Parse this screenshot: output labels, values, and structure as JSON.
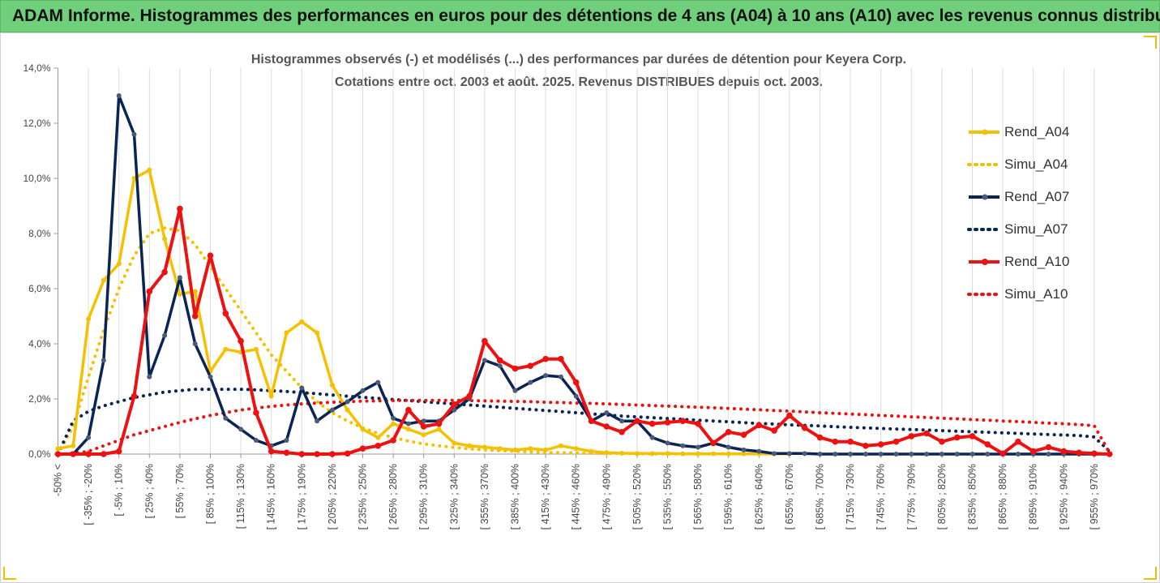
{
  "header": {
    "title": "ADAM Informe. Histogrammes des performances en euros pour des détentions de 4 ans (A04) à 10 ans (A10) avec les revenus connus distribués"
  },
  "chart_data": {
    "type": "line",
    "title": "Histogrammes observés (-)  et modélisés (...) des performances par durées de détention pour Keyera Corp.",
    "subtitle": "Cotations entre oct. 2003 et août. 2025.  Revenus DISTRIBUES depuis oct. 2003.",
    "ylim": [
      0,
      14
    ],
    "yticks": [
      "0,0%",
      "2,0%",
      "4,0%",
      "6,0%",
      "8,0%",
      "10,0%",
      "12,0%",
      "14,0%"
    ],
    "xtick_labels": [
      "-50% <",
      "[ -35% ; -20%",
      "[ -5% ; 10%",
      "[ 25% ; 40%",
      "[ 55% ; 70%",
      "[ 85% ; 100%",
      "[ 115% ; 130%",
      "[ 145% ; 160%",
      "[ 175% ; 190%",
      "[ 205% ; 220%",
      "[ 235% ; 250%",
      "[ 265% ; 280%",
      "[ 295% ; 310%",
      "[ 325% ; 340%",
      "[ 355% ; 370%",
      "[ 385% ; 400%",
      "[ 415% ; 430%",
      "[ 445% ; 460%",
      "[ 475% ; 490%",
      "[ 505% ; 520%",
      "[ 535% ; 550%",
      "[ 565% ; 580%",
      "[ 595% ; 610%",
      "[ 625% ; 640%",
      "[ 655% ; 670%",
      "[ 685% ; 700%",
      "[ 715% ; 730%",
      "[ 745% ; 760%",
      "[ 775% ; 790%",
      "[ 805% ; 820%",
      "[ 835% ; 850%",
      "[ 865% ; 880%",
      "[ 895% ; 910%",
      "[ 925% ; 940%",
      "[ 955% ; 970%"
    ],
    "n_bins": 70,
    "series": [
      {
        "name": "Rend_A04",
        "style": "solid",
        "color": "#f5c000",
        "values": [
          0.2,
          0.3,
          4.9,
          6.3,
          6.9,
          10.0,
          10.3,
          7.8,
          5.8,
          5.9,
          3.0,
          3.8,
          3.7,
          3.8,
          2.1,
          4.4,
          4.8,
          4.4,
          2.5,
          1.6,
          0.9,
          0.6,
          1.1,
          0.9,
          0.7,
          0.9,
          0.4,
          0.3,
          0.25,
          0.2,
          0.15,
          0.2,
          0.15,
          0.3,
          0.2,
          0.1,
          0.05,
          0.03,
          0.02,
          0.02,
          0.02,
          0.01,
          0.01,
          0.01,
          0.01,
          0.01,
          0.01,
          0.01,
          0.01,
          null,
          null,
          null,
          null,
          null,
          null,
          null,
          null,
          null,
          null,
          null,
          null,
          null,
          null,
          null,
          null,
          null,
          null,
          null,
          null,
          null
        ]
      },
      {
        "name": "Simu_A04",
        "style": "dotted",
        "color": "#f5c000",
        "values": [
          0.0,
          1.0,
          2.8,
          4.5,
          6.0,
          7.2,
          8.0,
          8.2,
          8.1,
          7.6,
          6.8,
          6.0,
          5.2,
          4.4,
          3.6,
          3.0,
          2.4,
          1.9,
          1.5,
          1.2,
          0.95,
          0.75,
          0.6,
          0.47,
          0.37,
          0.3,
          0.24,
          0.19,
          0.15,
          0.12,
          0.1,
          0.08,
          0.06,
          0.05,
          0.04,
          0.03,
          0.025,
          0.02,
          0.015,
          0.01,
          0.01,
          0.01,
          0.01,
          0.005,
          0.005,
          0.005,
          0.005,
          0.005,
          0.005,
          null,
          null,
          null,
          null,
          null,
          null,
          null,
          null,
          null,
          null,
          null,
          null,
          null,
          null,
          null,
          null,
          null,
          null,
          null,
          null,
          null
        ]
      },
      {
        "name": "Rend_A07",
        "style": "solid",
        "color": "#0a2456",
        "values": [
          0.0,
          0.0,
          0.6,
          3.4,
          13.0,
          11.6,
          2.8,
          4.3,
          6.4,
          4.0,
          2.8,
          1.3,
          0.9,
          0.5,
          0.3,
          0.5,
          2.4,
          1.2,
          1.6,
          1.9,
          2.3,
          2.6,
          1.3,
          1.1,
          1.2,
          1.2,
          1.6,
          2.0,
          3.4,
          3.2,
          2.3,
          2.6,
          2.85,
          2.8,
          2.1,
          1.2,
          1.5,
          1.2,
          1.2,
          0.6,
          0.4,
          0.3,
          0.25,
          0.4,
          0.25,
          0.15,
          0.1,
          0.02,
          0.02,
          0.02,
          0.0,
          0.0,
          0.0,
          0.0,
          0.0,
          0.0,
          0.0,
          0.0,
          0.0,
          0.0,
          0.0,
          0.0,
          0.0,
          0.0,
          0.0,
          0.0,
          0.0,
          0.0,
          0.0,
          0.0
        ]
      },
      {
        "name": "Simu_A07",
        "style": "dotted",
        "color": "#0a2456",
        "values": [
          0.0,
          1.2,
          1.55,
          1.75,
          1.9,
          2.05,
          2.15,
          2.25,
          2.3,
          2.35,
          2.35,
          2.35,
          2.35,
          2.33,
          2.3,
          2.27,
          2.23,
          2.19,
          2.14,
          2.1,
          2.06,
          2.02,
          1.98,
          1.94,
          1.9,
          1.86,
          1.82,
          1.78,
          1.74,
          1.7,
          1.66,
          1.62,
          1.58,
          1.54,
          1.5,
          1.46,
          1.42,
          1.38,
          1.35,
          1.32,
          1.29,
          1.26,
          1.23,
          1.2,
          1.17,
          1.14,
          1.11,
          1.09,
          1.06,
          1.04,
          1.02,
          0.99,
          0.97,
          0.95,
          0.93,
          0.91,
          0.89,
          0.87,
          0.85,
          0.83,
          0.81,
          0.79,
          0.77,
          0.75,
          0.73,
          0.71,
          0.69,
          0.67,
          0.62,
          0.1
        ]
      },
      {
        "name": "Rend_A10",
        "style": "solid",
        "color": "#ee1111",
        "values": [
          0.0,
          0.0,
          0.0,
          0.0,
          0.1,
          2.1,
          5.9,
          6.6,
          8.9,
          5.0,
          7.2,
          5.1,
          4.1,
          1.5,
          0.1,
          0.05,
          0.0,
          0.0,
          0.0,
          0.02,
          0.2,
          0.3,
          0.5,
          1.6,
          1.0,
          1.1,
          1.8,
          2.1,
          4.1,
          3.4,
          3.1,
          3.2,
          3.45,
          3.45,
          2.6,
          1.2,
          1.0,
          0.8,
          1.2,
          1.1,
          1.15,
          1.2,
          1.1,
          0.4,
          0.8,
          0.7,
          1.05,
          0.85,
          1.4,
          0.95,
          0.6,
          0.45,
          0.45,
          0.3,
          0.35,
          0.45,
          0.65,
          0.75,
          0.45,
          0.6,
          0.65,
          0.35,
          0.02,
          0.45,
          0.1,
          0.25,
          0.1,
          0.05,
          0.02,
          0.0
        ]
      },
      {
        "name": "Simu_A10",
        "style": "dotted",
        "color": "#ee1111",
        "values": [
          0.0,
          0.02,
          0.1,
          0.3,
          0.5,
          0.7,
          0.85,
          1.0,
          1.15,
          1.28,
          1.4,
          1.5,
          1.6,
          1.67,
          1.73,
          1.78,
          1.82,
          1.85,
          1.88,
          1.9,
          1.92,
          1.93,
          1.94,
          1.95,
          1.95,
          1.95,
          1.95,
          1.94,
          1.93,
          1.92,
          1.91,
          1.9,
          1.88,
          1.87,
          1.85,
          1.84,
          1.82,
          1.8,
          1.78,
          1.76,
          1.74,
          1.72,
          1.7,
          1.68,
          1.66,
          1.63,
          1.61,
          1.58,
          1.56,
          1.53,
          1.5,
          1.48,
          1.45,
          1.43,
          1.4,
          1.38,
          1.35,
          1.33,
          1.3,
          1.28,
          1.25,
          1.23,
          1.2,
          1.18,
          1.15,
          1.12,
          1.1,
          1.07,
          1.03,
          0.05
        ]
      }
    ],
    "legend": {
      "position": "right"
    },
    "grid": {
      "x": true,
      "y": false
    }
  }
}
